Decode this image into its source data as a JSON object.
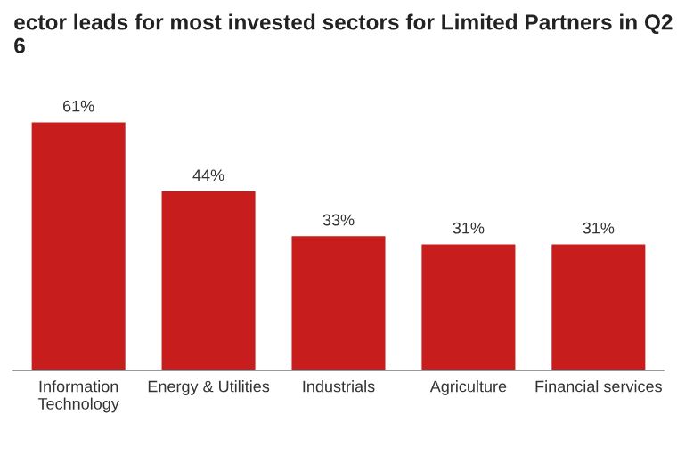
{
  "chart_data": {
    "type": "bar",
    "title": "ector leads for most invested sectors for Limited Partners in Q2\n6",
    "categories": [
      "Information\nTechnology",
      "Energy & Utilities",
      "Industrials",
      "Agriculture",
      "Financial services"
    ],
    "values": [
      61,
      44,
      33,
      31,
      31
    ],
    "color": "#c71e1d",
    "value_labels": [
      "61%",
      "44%",
      "33%",
      "31%",
      "31%"
    ],
    "grid": false
  }
}
